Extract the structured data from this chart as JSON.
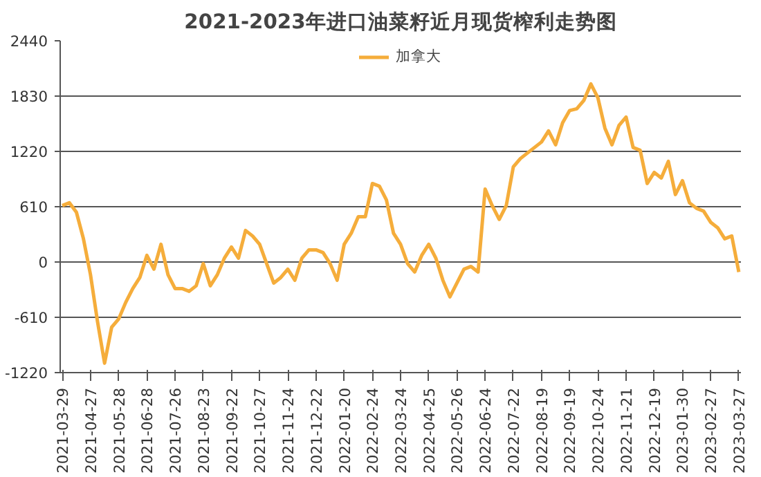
{
  "chart_data": {
    "type": "line",
    "title": "2021-2023年进口油菜籽近月现货榨利走势图",
    "categories": [
      "2021-03-29",
      null,
      null,
      null,
      "2021-04-27",
      null,
      null,
      null,
      "2021-05-28",
      null,
      null,
      null,
      "2021-06-28",
      null,
      null,
      null,
      "2021-07-26",
      null,
      null,
      null,
      "2021-08-23",
      null,
      null,
      null,
      "2021-09-22",
      null,
      null,
      null,
      "2021-10-27",
      null,
      null,
      null,
      "2021-11-24",
      null,
      null,
      null,
      "2021-12-22",
      null,
      null,
      null,
      "2022-01-20",
      null,
      null,
      null,
      "2022-02-24",
      null,
      null,
      null,
      "2022-03-24",
      null,
      null,
      null,
      "2022-04-25",
      null,
      null,
      null,
      "2022-05-26",
      null,
      null,
      null,
      "2022-06-24",
      null,
      null,
      null,
      "2022-07-22",
      null,
      null,
      null,
      "2022-08-19",
      null,
      null,
      null,
      "2022-09-19",
      null,
      null,
      null,
      "2022-10-24",
      null,
      null,
      null,
      "2022-11-21",
      null,
      null,
      null,
      "2022-12-19",
      null,
      null,
      null,
      "2023-01-30",
      null,
      null,
      null,
      "2023-02-27",
      null,
      null,
      null,
      "2023-03-27"
    ],
    "series": [
      {
        "name": "加拿大",
        "color": "#f5ad3b",
        "values": [
          622,
          653,
          549,
          256,
          -140,
          -659,
          -1116,
          -720,
          -628,
          -445,
          -293,
          -171,
          73,
          -79,
          195,
          -140,
          -293,
          -293,
          -323,
          -262,
          -18,
          -262,
          -140,
          43,
          165,
          43,
          348,
          287,
          195,
          -18,
          -232,
          -171,
          -79,
          -201,
          43,
          134,
          134,
          104,
          -18,
          -201,
          195,
          317,
          500,
          500,
          866,
          836,
          683,
          317,
          195,
          -18,
          -110,
          73,
          195,
          43,
          -201,
          -384,
          -232,
          -79,
          -49,
          -110,
          805,
          622,
          470,
          622,
          1049,
          1141,
          1202,
          1263,
          1324,
          1446,
          1293,
          1537,
          1671,
          1690,
          1781,
          1964,
          1812,
          1476,
          1293,
          1507,
          1598,
          1263,
          1232,
          866,
          988,
          927,
          1110,
          744,
          897,
          653,
          592,
          561,
          439,
          378,
          256,
          287,
          -110
        ]
      }
    ],
    "ylim": [
      -1220,
      2440
    ],
    "yticks": [
      -1220,
      -610,
      0,
      610,
      1220,
      1830,
      2440
    ],
    "grid": "y",
    "legend": "top",
    "line_style": "solid",
    "marker": "none"
  }
}
